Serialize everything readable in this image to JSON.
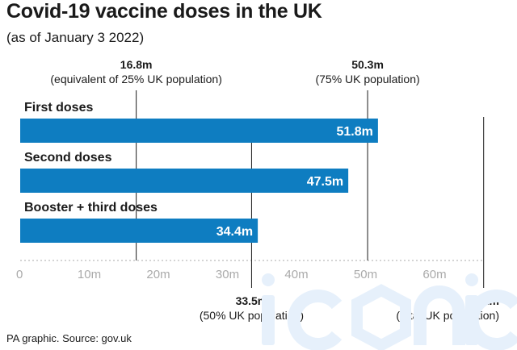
{
  "title": "Covid-19 vaccine doses in the UK",
  "subtitle": "(as of January 3 2022)",
  "source": "PA graphic. Source: gov.uk",
  "watermark_text": "iconic",
  "colors": {
    "bar": "#0e7dc1",
    "bar_label": "#ffffff",
    "text": "#1a1a1a",
    "axis": "#aaaaaa",
    "grid": "#cfcfcf",
    "ref_line": "#1a1a1a",
    "watermark": "#e6f0fb"
  },
  "chart_data": {
    "type": "bar",
    "orientation": "horizontal",
    "title": "Covid-19 vaccine doses in the UK",
    "subtitle": "(as of January 3 2022)",
    "unit": "m",
    "categories": [
      "First doses",
      "Second doses",
      "Booster + third doses"
    ],
    "values": [
      51.8,
      47.5,
      34.4
    ],
    "value_labels": [
      "51.8m",
      "47.5m",
      "34.4m"
    ],
    "xlim": [
      0,
      67.1
    ],
    "xticks": [
      0,
      10,
      20,
      30,
      40,
      50,
      60
    ],
    "xtick_labels": [
      "0",
      "10m",
      "20m",
      "30m",
      "40m",
      "50m",
      "60m"
    ],
    "grid": "vertical dotted at reference values",
    "reference_lines": [
      {
        "value": 16.8,
        "label": "16.8m",
        "note": "(equivalent of 25% UK population)",
        "position": "top"
      },
      {
        "value": 50.3,
        "label": "50.3m",
        "note": "(75% UK population)",
        "position": "top"
      },
      {
        "value": 33.5,
        "label": "33.5m",
        "note": "(50% UK population)",
        "position": "bottom"
      },
      {
        "value": 67.1,
        "label": "67.1m",
        "note": "(total UK population)",
        "position": "bottom"
      }
    ]
  }
}
